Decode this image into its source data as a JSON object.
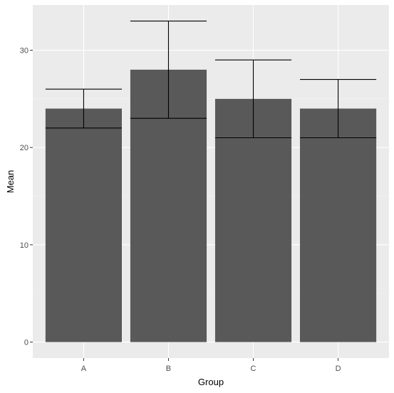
{
  "chart_data": {
    "type": "bar",
    "categories": [
      "A",
      "B",
      "C",
      "D"
    ],
    "values": [
      24,
      28,
      25,
      24
    ],
    "error_bars": [
      {
        "lower": 22,
        "upper": 26
      },
      {
        "lower": 23,
        "upper": 33
      },
      {
        "lower": 21,
        "upper": 29
      },
      {
        "lower": 21,
        "upper": 27
      }
    ],
    "xlabel": "Group",
    "ylabel": "Mean",
    "ylim": [
      -1.65,
      34.65
    ],
    "yticks": [
      0,
      10,
      20,
      30
    ],
    "ytick_labels": [
      "0",
      "10",
      "20",
      "30"
    ],
    "grid": true,
    "legend": "none",
    "colors": {
      "panel_background": "#ebebeb",
      "grid_major": "#ffffff",
      "grid_minor": "#f5f5f5",
      "bar_fill": "#595959",
      "error_bar": "#000000",
      "tick_label": "#4d4d4d",
      "tick_mark": "#333333",
      "axis_title": "#000000"
    }
  }
}
